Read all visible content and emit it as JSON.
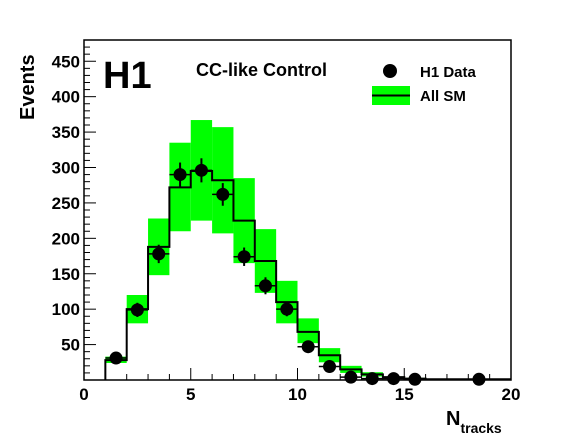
{
  "chart_data": {
    "type": "histogram",
    "logo": "H1",
    "title": "CC-like Control",
    "ylabel": "Events",
    "xlabel": {
      "main": "N",
      "sub": "tracks"
    },
    "xlim": [
      0,
      20
    ],
    "ylim": [
      0,
      480
    ],
    "x_ticks": [
      0,
      5,
      10,
      15,
      20
    ],
    "y_ticks": [
      50,
      100,
      150,
      200,
      250,
      300,
      350,
      400,
      450
    ],
    "legend": [
      {
        "label": "H1 Data",
        "marker": "filled-circle"
      },
      {
        "label": "All SM",
        "marker": "line-with-band"
      }
    ],
    "colors": {
      "band": "#00ff00",
      "line": "#000000",
      "points": "#000000"
    },
    "sm_histogram": {
      "bin_edges": [
        1,
        2,
        3,
        4,
        5,
        6,
        7,
        8,
        9,
        10,
        11,
        12,
        13,
        14,
        15,
        16,
        17,
        18,
        19,
        20
      ],
      "values": [
        28,
        100,
        188,
        272,
        295,
        282,
        225,
        168,
        110,
        68,
        35,
        15,
        8,
        4,
        2,
        1,
        1,
        1,
        1
      ],
      "band_low": [
        24,
        80,
        148,
        210,
        225,
        207,
        165,
        123,
        80,
        52,
        25,
        10,
        5,
        2,
        1,
        0,
        0,
        0,
        0
      ],
      "band_high": [
        33,
        120,
        228,
        335,
        367,
        357,
        285,
        213,
        140,
        87,
        45,
        20,
        11,
        5,
        3,
        2,
        2,
        2,
        2
      ]
    },
    "data_points": {
      "x": [
        1.5,
        2.5,
        3.5,
        4.5,
        5.5,
        6.5,
        7.5,
        8.5,
        9.5,
        10.5,
        11.5,
        12.5,
        13.5,
        14.5,
        15.5,
        18.5
      ],
      "y": [
        31,
        99,
        178,
        290,
        296,
        262,
        174,
        133,
        100,
        47,
        19,
        4,
        2,
        2,
        1,
        1
      ],
      "yerr": [
        6,
        10,
        13,
        17,
        17,
        16,
        13,
        12,
        10,
        7,
        4,
        2,
        1,
        1,
        1,
        1
      ]
    }
  }
}
